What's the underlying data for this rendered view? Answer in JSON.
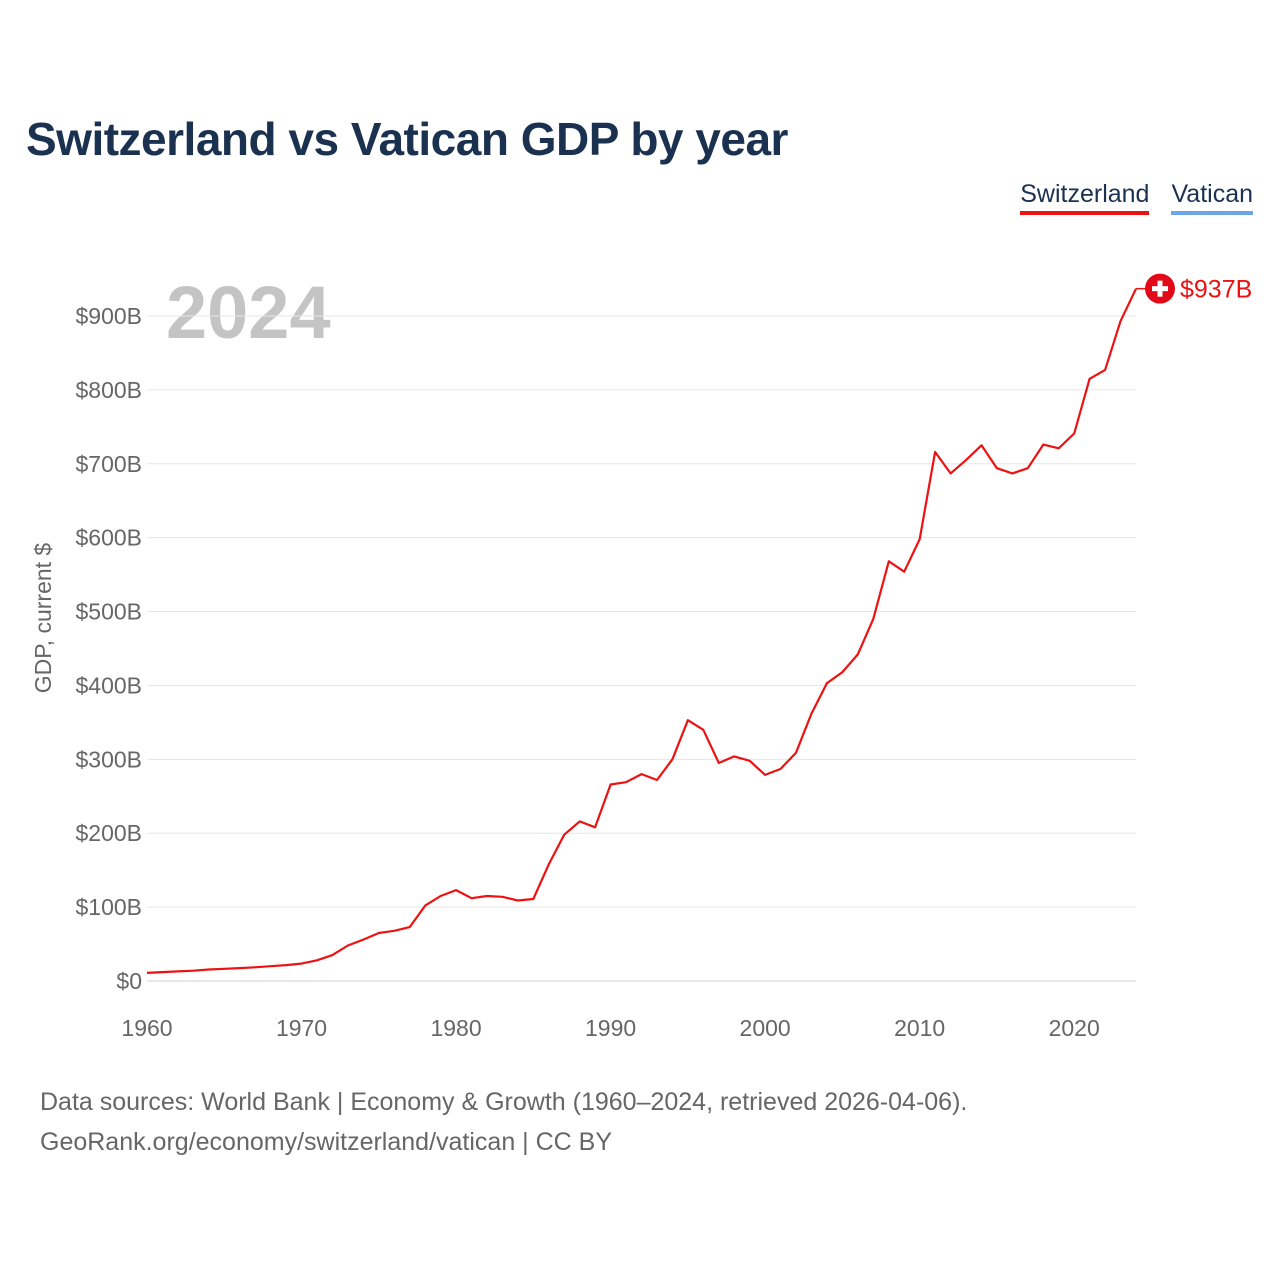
{
  "title": "Switzerland vs Vatican GDP by year",
  "legend": [
    {
      "label": "Switzerland",
      "color": "#ee1111"
    },
    {
      "label": "Vatican",
      "color": "#6aa6e8"
    }
  ],
  "year_watermark": "2024",
  "end_label": "$937B",
  "flag_icon": "swiss-flag-icon",
  "source": {
    "line1": "Data sources: World Bank | Economy & Growth (1960–2024, retrieved 2026-04-06).",
    "line2": "GeoRank.org/economy/switzerland/vatican | CC BY"
  },
  "chart_data": {
    "type": "line",
    "title": "Switzerland vs Vatican GDP by year",
    "xlabel": "",
    "ylabel": "GDP, current $",
    "xlim": [
      1960,
      2024
    ],
    "ylim": [
      0,
      900
    ],
    "unit": "billion US$",
    "x_ticks": [
      1960,
      1970,
      1980,
      1990,
      2000,
      2010,
      2020
    ],
    "x_tick_labels": [
      "1960",
      "1970",
      "1980",
      "1990",
      "2000",
      "2010",
      "2020"
    ],
    "y_ticks": [
      0,
      100,
      200,
      300,
      400,
      500,
      600,
      700,
      800,
      900
    ],
    "y_tick_labels": [
      "$0",
      "$100B",
      "$200B",
      "$300B",
      "$400B",
      "$500B",
      "$600B",
      "$700B",
      "$800B",
      "$900B"
    ],
    "grid": true,
    "series": [
      {
        "name": "Switzerland",
        "color": "#ee1111",
        "x": [
          1960,
          1961,
          1962,
          1963,
          1964,
          1965,
          1966,
          1967,
          1968,
          1969,
          1970,
          1971,
          1972,
          1973,
          1974,
          1975,
          1976,
          1977,
          1978,
          1979,
          1980,
          1981,
          1982,
          1983,
          1984,
          1985,
          1986,
          1987,
          1988,
          1989,
          1990,
          1991,
          1992,
          1993,
          1994,
          1995,
          1996,
          1997,
          1998,
          1999,
          2000,
          2001,
          2002,
          2003,
          2004,
          2005,
          2006,
          2007,
          2008,
          2009,
          2010,
          2011,
          2012,
          2013,
          2014,
          2015,
          2016,
          2017,
          2018,
          2019,
          2020,
          2021,
          2022,
          2023,
          2024
        ],
        "values": [
          11,
          12,
          13,
          14,
          15.5,
          16.5,
          17.5,
          18.5,
          20,
          21.5,
          23.5,
          28,
          35,
          48,
          56,
          65,
          68,
          73,
          102,
          115,
          123,
          112,
          115,
          114,
          109,
          111,
          158,
          198,
          216,
          208,
          266,
          269,
          280,
          272,
          300,
          353,
          340,
          295,
          304,
          298,
          279,
          287,
          309,
          362,
          403,
          418,
          442,
          490,
          568,
          554,
          598,
          716,
          687,
          705,
          725,
          694,
          687,
          694,
          726,
          721,
          741,
          815,
          827,
          893,
          937
        ]
      },
      {
        "name": "Vatican",
        "color": "#6aa6e8",
        "x": [],
        "values": []
      }
    ]
  }
}
